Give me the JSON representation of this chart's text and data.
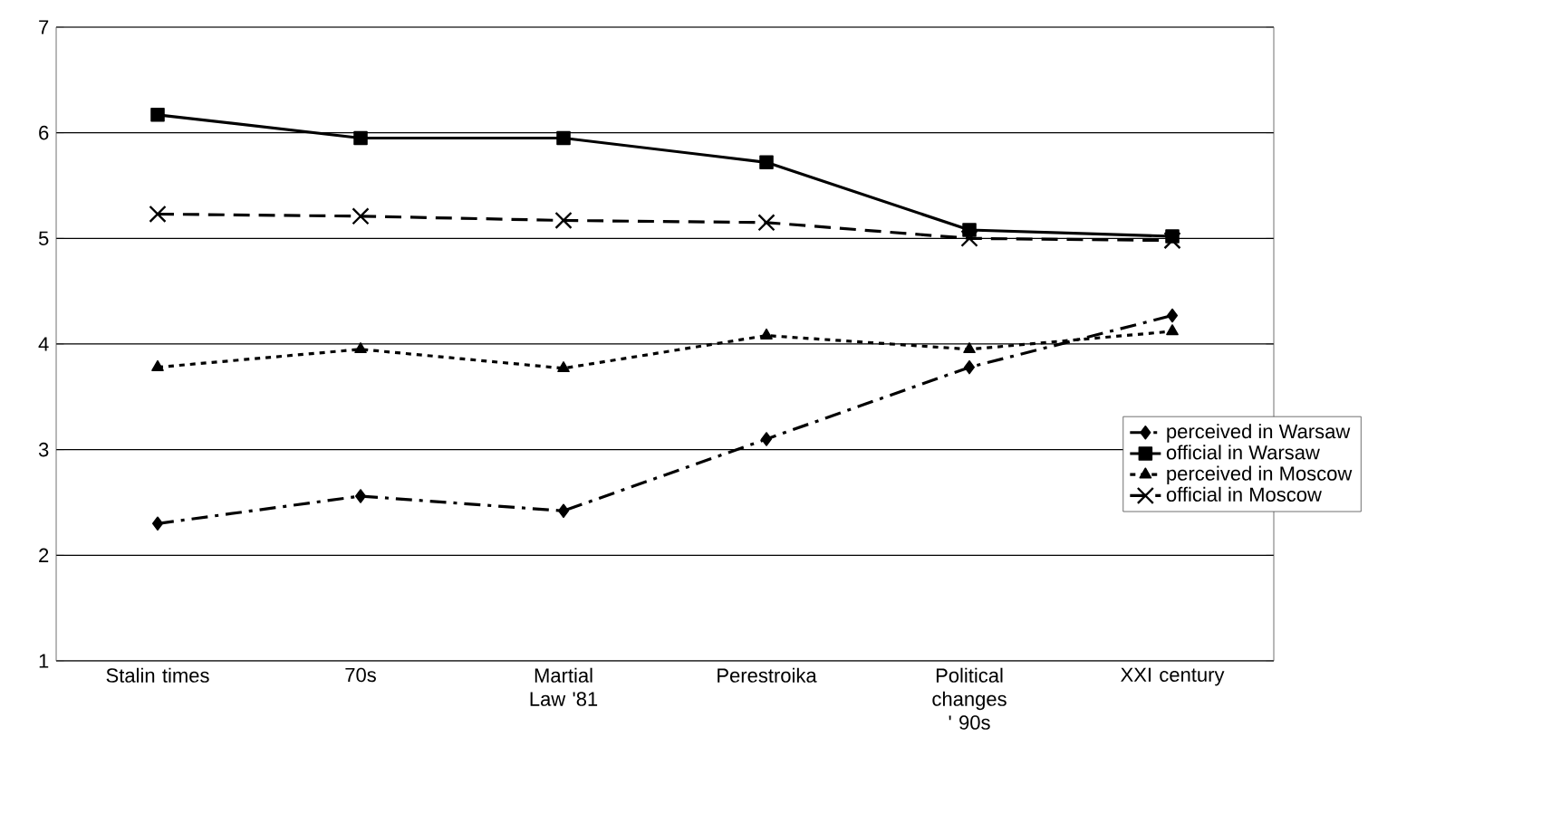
{
  "chart_data": {
    "type": "line",
    "categories": [
      "Stalin times",
      "70s",
      "Martial Law '81",
      "Perestroika",
      "Political changes ' 90s",
      "XXI century"
    ],
    "series": [
      {
        "name": "perceived in Warsaw",
        "color": "#000000",
        "marker": "diamond",
        "line_style": "dashdot",
        "values": [
          2.3,
          2.56,
          2.42,
          3.1,
          3.78,
          4.27
        ]
      },
      {
        "name": "official in Warsaw",
        "color": "#000000",
        "marker": "square",
        "line_style": "solid",
        "values": [
          6.17,
          5.95,
          5.95,
          5.72,
          5.08,
          5.02
        ]
      },
      {
        "name": "perceived in Moscow",
        "color": "#000000",
        "marker": "triangle",
        "line_style": "dotted",
        "values": [
          3.78,
          3.95,
          3.77,
          4.08,
          3.95,
          4.12
        ]
      },
      {
        "name": "official in Moscow",
        "color": "#000000",
        "marker": "cross",
        "line_style": "dashed",
        "values": [
          5.23,
          5.21,
          5.17,
          5.15,
          5.0,
          4.98
        ]
      }
    ],
    "ylim": [
      1,
      7
    ],
    "yticks": [
      1,
      2,
      3,
      4,
      5,
      6,
      7
    ],
    "grid": "y",
    "legend": "right"
  }
}
